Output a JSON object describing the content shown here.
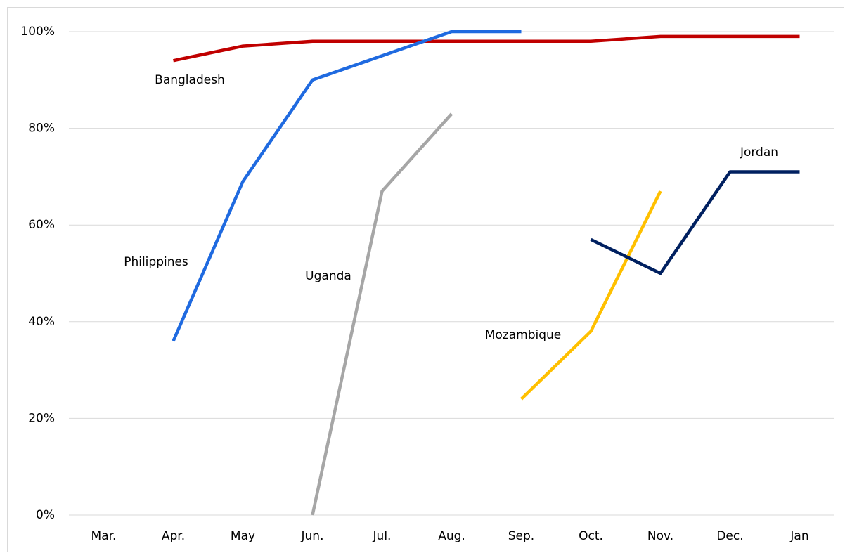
{
  "chart_data": {
    "type": "line",
    "categories": [
      "Mar.",
      "Apr.",
      "May",
      "Jun.",
      "Jul.",
      "Aug.",
      "Sep.",
      "Oct.",
      "Nov.",
      "Dec.",
      "Jan"
    ],
    "series": [
      {
        "name": "Bangladesh",
        "color": "#c00000",
        "values": [
          null,
          94,
          97,
          98,
          98,
          98,
          98,
          98,
          99,
          99,
          99
        ]
      },
      {
        "name": "Philippines",
        "color": "#1f6ae0",
        "values": [
          null,
          36,
          69,
          90,
          95,
          100,
          100,
          null,
          null,
          null,
          null
        ]
      },
      {
        "name": "Uganda",
        "color": "#a6a6a6",
        "values": [
          null,
          null,
          null,
          0,
          67,
          83,
          null,
          null,
          null,
          null,
          null
        ]
      },
      {
        "name": "Mozambique",
        "color": "#ffc000",
        "values": [
          null,
          null,
          null,
          null,
          null,
          null,
          24,
          38,
          67,
          null,
          null
        ]
      },
      {
        "name": "Jordan",
        "color": "#002060",
        "values": [
          null,
          null,
          null,
          null,
          null,
          null,
          null,
          57,
          50,
          71,
          71
        ]
      }
    ],
    "ylim": [
      0,
      100
    ],
    "yticks": [
      {
        "value": 0,
        "label": "0%"
      },
      {
        "value": 20,
        "label": "20%"
      },
      {
        "value": 40,
        "label": "40%"
      },
      {
        "value": 60,
        "label": "60%"
      },
      {
        "value": 80,
        "label": "80%"
      },
      {
        "value": 100,
        "label": "100%"
      }
    ],
    "grid": true
  }
}
